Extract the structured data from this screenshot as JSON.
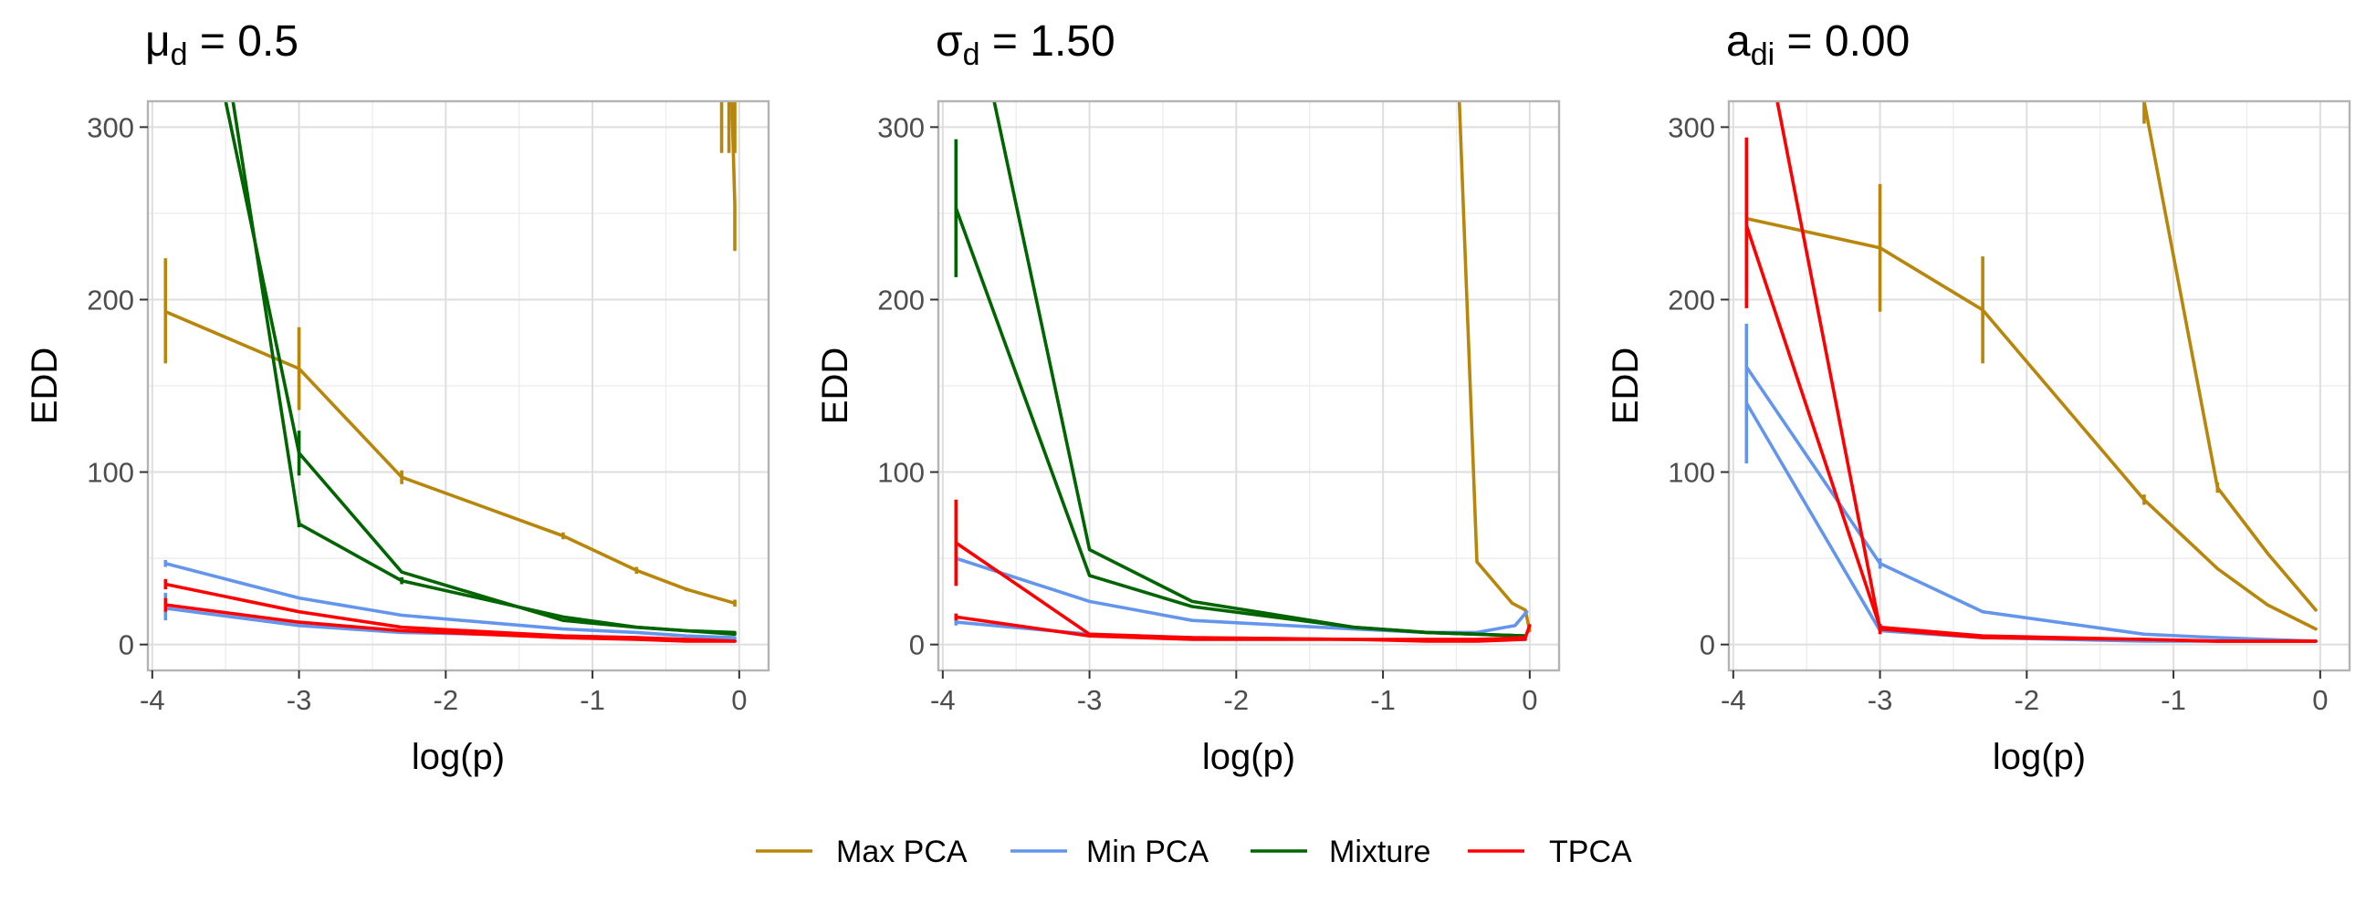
{
  "chart_data": [
    {
      "type": "line",
      "title": {
        "symbol": "μ",
        "sub": "d",
        "rest": " = 0.5"
      },
      "xlabel": "log(p)",
      "ylabel": "EDD",
      "xlim": [
        -4.03,
        0.2
      ],
      "ylim": [
        -15,
        315
      ],
      "xticks": [
        -4,
        -3,
        -2,
        -1,
        0
      ],
      "yticks": [
        0,
        100,
        200,
        300
      ],
      "series": [
        {
          "name": "Max PCA",
          "lines": [
            {
              "points": [
                [
                  -3.91,
                  193
                ],
                [
                  -3.0,
                  160
                ],
                [
                  -2.3,
                  97
                ],
                [
                  -1.2,
                  63
                ],
                [
                  -0.7,
                  43
                ],
                [
                  -0.36,
                  32
                ],
                [
                  -0.03,
                  24
                ]
              ]
            },
            {
              "points": [
                [
                  -0.05,
                  315
                ],
                [
                  -0.03,
                  255
                ],
                [
                  -0.03,
                  229
                ]
              ]
            }
          ],
          "errorbars": [
            [
              -3.91,
              163,
              224
            ],
            [
              -3.0,
              136,
              184
            ],
            [
              -2.3,
              93,
              101
            ],
            [
              -1.2,
              61,
              65
            ],
            [
              -0.7,
              41,
              45
            ],
            [
              -0.36,
              31,
              33
            ],
            [
              -0.03,
              22,
              26
            ],
            [
              -0.12,
              285,
              315
            ],
            [
              -0.07,
              285,
              315
            ],
            [
              -0.03,
              285,
              315
            ]
          ]
        },
        {
          "name": "Min PCA",
          "lines": [
            {
              "points": [
                [
                  -3.91,
                  47
                ],
                [
                  -3.0,
                  27
                ],
                [
                  -2.3,
                  17
                ],
                [
                  -1.2,
                  9
                ],
                [
                  -0.7,
                  7
                ],
                [
                  -0.36,
                  5
                ],
                [
                  -0.03,
                  4
                ]
              ]
            },
            {
              "points": [
                [
                  -3.91,
                  21
                ],
                [
                  -3.0,
                  11
                ],
                [
                  -2.3,
                  7
                ],
                [
                  -1.2,
                  5
                ],
                [
                  -0.7,
                  4
                ],
                [
                  -0.36,
                  3
                ],
                [
                  -0.03,
                  3
                ]
              ]
            }
          ],
          "errorbars": [
            [
              -3.91,
              45,
              49
            ],
            [
              -3.91,
              14,
              30
            ]
          ]
        },
        {
          "name": "Mixture",
          "lines": [
            {
              "points": [
                [
                  -3.45,
                  315
                ],
                [
                  -3.0,
                  70
                ],
                [
                  -2.3,
                  37
                ],
                [
                  -1.2,
                  16
                ],
                [
                  -0.7,
                  10
                ],
                [
                  -0.36,
                  8
                ],
                [
                  -0.03,
                  7
                ]
              ]
            },
            {
              "points": [
                [
                  -3.5,
                  315
                ],
                [
                  -3.0,
                  111
                ],
                [
                  -2.3,
                  42
                ],
                [
                  -1.2,
                  14
                ],
                [
                  -0.7,
                  10
                ],
                [
                  -0.36,
                  8
                ],
                [
                  -0.03,
                  6
                ]
              ]
            }
          ],
          "errorbars": [
            [
              -3.0,
              98,
              124
            ],
            [
              -3.0,
              68,
              72
            ],
            [
              -2.3,
              35,
              39
            ]
          ]
        },
        {
          "name": "TPCA",
          "lines": [
            {
              "points": [
                [
                  -3.91,
                  35
                ],
                [
                  -3.0,
                  19
                ],
                [
                  -2.3,
                  10
                ],
                [
                  -1.2,
                  5
                ],
                [
                  -0.7,
                  4
                ],
                [
                  -0.36,
                  3
                ],
                [
                  -0.03,
                  2
                ]
              ]
            },
            {
              "points": [
                [
                  -3.91,
                  23
                ],
                [
                  -3.0,
                  13
                ],
                [
                  -2.3,
                  8
                ],
                [
                  -1.2,
                  4
                ],
                [
                  -0.7,
                  3
                ],
                [
                  -0.36,
                  2
                ],
                [
                  -0.03,
                  2
                ]
              ]
            }
          ],
          "errorbars": [
            [
              -3.91,
              32,
              38
            ],
            [
              -3.91,
              19,
              27
            ]
          ]
        }
      ]
    },
    {
      "type": "line",
      "title": {
        "symbol": "σ",
        "sub": "d",
        "rest": " = 1.50"
      },
      "xlabel": "log(p)",
      "ylabel": "EDD",
      "xlim": [
        -4.03,
        0.2
      ],
      "ylim": [
        -15,
        315
      ],
      "xticks": [
        -4,
        -3,
        -2,
        -1,
        0
      ],
      "yticks": [
        0,
        100,
        200,
        300
      ],
      "series": [
        {
          "name": "Max PCA",
          "lines": [
            {
              "points": [
                [
                  -0.48,
                  315
                ],
                [
                  -0.36,
                  48
                ],
                [
                  -0.12,
                  24
                ],
                [
                  -0.03,
                  20
                ],
                [
                  0.0,
                  8
                ]
              ]
            }
          ],
          "errorbars": []
        },
        {
          "name": "Min PCA",
          "lines": [
            {
              "points": [
                [
                  -3.91,
                  50
                ],
                [
                  -3.0,
                  25
                ],
                [
                  -2.3,
                  14
                ],
                [
                  -1.2,
                  9
                ],
                [
                  -0.7,
                  7
                ],
                [
                  -0.36,
                  7
                ],
                [
                  -0.1,
                  11
                ],
                [
                  -0.02,
                  19
                ]
              ]
            },
            {
              "points": [
                [
                  -3.91,
                  13
                ],
                [
                  -3.0,
                  6
                ],
                [
                  -2.3,
                  4
                ],
                [
                  -1.2,
                  3
                ],
                [
                  -0.7,
                  3
                ],
                [
                  -0.36,
                  3
                ],
                [
                  -0.03,
                  3
                ]
              ]
            }
          ],
          "errorbars": [
            [
              -3.91,
              46,
              54
            ],
            [
              -3.91,
              11,
              15
            ]
          ]
        },
        {
          "name": "Mixture",
          "lines": [
            {
              "points": [
                [
                  -3.91,
                  253
                ],
                [
                  -3.0,
                  40
                ],
                [
                  -2.3,
                  22
                ],
                [
                  -1.2,
                  10
                ],
                [
                  -0.7,
                  7
                ],
                [
                  -0.36,
                  6
                ],
                [
                  -0.03,
                  5
                ]
              ]
            },
            {
              "points": [
                [
                  -3.65,
                  315
                ],
                [
                  -3.0,
                  55
                ],
                [
                  -2.3,
                  25
                ],
                [
                  -1.2,
                  10
                ],
                [
                  -0.7,
                  7
                ],
                [
                  -0.36,
                  6
                ],
                [
                  -0.03,
                  5
                ]
              ]
            }
          ],
          "errorbars": [
            [
              -3.91,
              213,
              293
            ]
          ]
        },
        {
          "name": "TPCA",
          "lines": [
            {
              "points": [
                [
                  -3.91,
                  59
                ],
                [
                  -3.0,
                  6
                ],
                [
                  -2.3,
                  4
                ],
                [
                  -1.2,
                  3
                ],
                [
                  -0.7,
                  3
                ],
                [
                  -0.36,
                  3
                ],
                [
                  -0.03,
                  4
                ],
                [
                  0.0,
                  11
                ]
              ]
            },
            {
              "points": [
                [
                  -3.91,
                  16
                ],
                [
                  -3.0,
                  5
                ],
                [
                  -2.3,
                  3
                ],
                [
                  -1.2,
                  3
                ],
                [
                  -0.7,
                  2
                ],
                [
                  -0.36,
                  2
                ],
                [
                  -0.03,
                  3
                ]
              ]
            }
          ],
          "errorbars": [
            [
              -3.91,
              34,
              84
            ],
            [
              -3.91,
              14,
              18
            ]
          ]
        }
      ]
    },
    {
      "type": "line",
      "title": {
        "symbol": "a",
        "sub": "di",
        "rest": " = 0.00"
      },
      "xlabel": "log(p)",
      "ylabel": "EDD",
      "xlim": [
        -4.03,
        0.2
      ],
      "ylim": [
        -15,
        315
      ],
      "xticks": [
        -4,
        -3,
        -2,
        -1,
        0
      ],
      "yticks": [
        0,
        100,
        200,
        300
      ],
      "series": [
        {
          "name": "Max PCA",
          "lines": [
            {
              "points": [
                [
                  -3.91,
                  247
                ],
                [
                  -3.0,
                  230
                ],
                [
                  -2.3,
                  194
                ],
                [
                  -1.2,
                  84
                ],
                [
                  -0.7,
                  44
                ],
                [
                  -0.36,
                  23
                ],
                [
                  -0.03,
                  9
                ]
              ]
            },
            {
              "points": [
                [
                  -1.2,
                  315
                ],
                [
                  -0.7,
                  91
                ],
                [
                  -0.36,
                  53
                ],
                [
                  -0.03,
                  20
                ]
              ]
            }
          ],
          "errorbars": [
            [
              -3.91,
              208,
              286
            ],
            [
              -3.0,
              193,
              267
            ],
            [
              -2.3,
              163,
              225
            ],
            [
              -1.2,
              302,
              315
            ],
            [
              -0.7,
              88,
              94
            ],
            [
              -1.2,
              81,
              87
            ]
          ]
        },
        {
          "name": "Min PCA",
          "lines": [
            {
              "points": [
                [
                  -3.91,
                  161
                ],
                [
                  -3.0,
                  47
                ],
                [
                  -2.3,
                  19
                ],
                [
                  -1.2,
                  6
                ],
                [
                  -0.7,
                  4
                ],
                [
                  -0.36,
                  3
                ],
                [
                  -0.03,
                  2
                ]
              ]
            },
            {
              "points": [
                [
                  -3.91,
                  140
                ],
                [
                  -3.0,
                  8
                ],
                [
                  -2.3,
                  4
                ],
                [
                  -1.2,
                  2
                ],
                [
                  -0.7,
                  2
                ],
                [
                  -0.36,
                  2
                ],
                [
                  -0.03,
                  2
                ]
              ]
            }
          ],
          "errorbars": [
            [
              -3.91,
              105,
              186
            ],
            [
              -3.0,
              44,
              50
            ]
          ]
        },
        {
          "name": "Mixture",
          "lines": [],
          "errorbars": []
        },
        {
          "name": "TPCA",
          "lines": [
            {
              "points": [
                [
                  -3.91,
                  243
                ],
                [
                  -3.0,
                  10
                ],
                [
                  -2.3,
                  5
                ],
                [
                  -1.2,
                  3
                ],
                [
                  -0.7,
                  2
                ],
                [
                  -0.36,
                  2
                ],
                [
                  -0.03,
                  2
                ]
              ]
            },
            {
              "points": [
                [
                  -3.7,
                  315
                ],
                [
                  -3.0,
                  9
                ],
                [
                  -2.3,
                  4
                ],
                [
                  -1.2,
                  3
                ],
                [
                  -0.7,
                  2
                ],
                [
                  -0.36,
                  2
                ],
                [
                  -0.03,
                  2
                ]
              ]
            }
          ],
          "errorbars": [
            [
              -3.91,
              195,
              294
            ],
            [
              -3.0,
              6,
              12
            ]
          ]
        }
      ]
    }
  ],
  "legend": [
    {
      "name": "Max PCA",
      "color": "#b8860b"
    },
    {
      "name": "Min PCA",
      "color": "#6495ed"
    },
    {
      "name": "Mixture",
      "color": "#006400"
    },
    {
      "name": "TPCA",
      "color": "#ff0000"
    }
  ]
}
